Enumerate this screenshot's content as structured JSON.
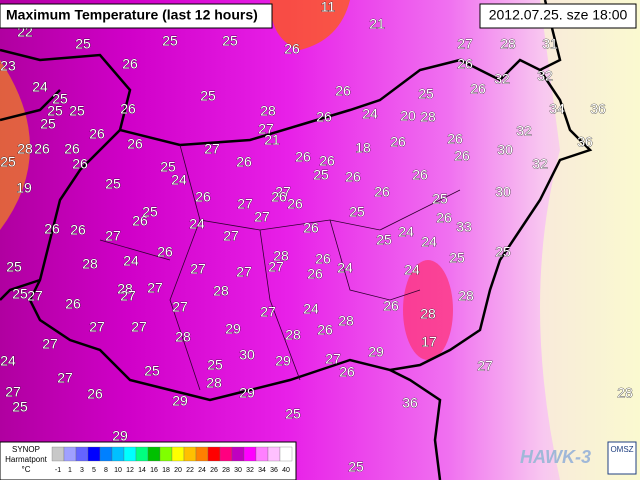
{
  "header": {
    "title": "Maximum Temperature (last 12 hours)",
    "timestamp": "2012.07.25. sze 18:00"
  },
  "stations": [
    22,
    25,
    25,
    25,
    26,
    21,
    11,
    27,
    28,
    31,
    23,
    24,
    25,
    26,
    25,
    28,
    26,
    25,
    25,
    25,
    26,
    26,
    26,
    24,
    20,
    28,
    25,
    26,
    26,
    32,
    32,
    34,
    36,
    32,
    27,
    21,
    25,
    28,
    26,
    26,
    26,
    27,
    26,
    26,
    26,
    18,
    26,
    26,
    26,
    30,
    32,
    36,
    19,
    26,
    25,
    25,
    24,
    26,
    27,
    26,
    25,
    26,
    26,
    26,
    25,
    30,
    26,
    26,
    27,
    25,
    26,
    24,
    27,
    27,
    27,
    26,
    26,
    25,
    25,
    24,
    24,
    26,
    33,
    25,
    25,
    28,
    24,
    26,
    27,
    27,
    27,
    28,
    26,
    26,
    24,
    24,
    25,
    25,
    27,
    26,
    28,
    27,
    27,
    27,
    28,
    27,
    24,
    26,
    28,
    24,
    27,
    27,
    27,
    28,
    29,
    28,
    26,
    28,
    28,
    17,
    27,
    25,
    27,
    25,
    25,
    28,
    30,
    29,
    27,
    26,
    29,
    27,
    26,
    29,
    29,
    25,
    36,
    28,
    29,
    25
  ],
  "legend": {
    "title": "SYNOP",
    "subtitle": "Harmatpont",
    "unit": "°C",
    "labels": [
      "-1",
      "1",
      "3",
      "5",
      "8",
      "10",
      "12",
      "14",
      "16",
      "18",
      "20",
      "22",
      "24",
      "26",
      "28",
      "30",
      "32",
      "34",
      "36",
      "40"
    ],
    "colors": [
      "#c8c8c8",
      "#a0a0ff",
      "#6464ff",
      "#0000ff",
      "#0080ff",
      "#00c0ff",
      "#00ffff",
      "#00ff80",
      "#00c000",
      "#80ff00",
      "#ffff00",
      "#ffc000",
      "#ff8000",
      "#ff0000",
      "#ff0080",
      "#c000c0",
      "#ff00ff",
      "#ff80ff",
      "#ffc0ff",
      "#ffffff"
    ]
  },
  "logo": {
    "product": "HAWK-3",
    "org": "OMSZ"
  }
}
